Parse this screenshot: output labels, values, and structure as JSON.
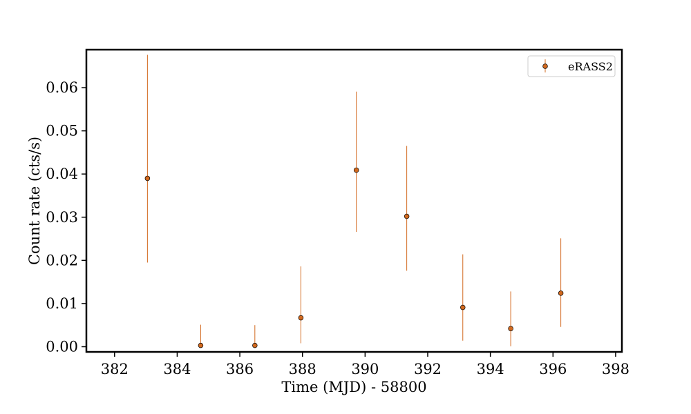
{
  "chart_data": {
    "type": "scatter",
    "xlabel": "Time (MJD) - 58800",
    "ylabel": "Count rate (cts/s)",
    "xlim": [
      381.1,
      398.2
    ],
    "ylim": [
      -0.0012,
      0.0688
    ],
    "xticks": [
      382,
      384,
      386,
      388,
      390,
      392,
      394,
      396,
      398
    ],
    "xtick_labels": [
      "382",
      "384",
      "386",
      "388",
      "390",
      "392",
      "394",
      "396",
      "398"
    ],
    "yticks": [
      0.0,
      0.01,
      0.02,
      0.03,
      0.04,
      0.05,
      0.06
    ],
    "ytick_labels": [
      "0.00",
      "0.01",
      "0.02",
      "0.03",
      "0.04",
      "0.05",
      "0.06"
    ],
    "grid": false,
    "legend_position": "top-right",
    "series": [
      {
        "name": "eRASS2",
        "color": "#d2691e",
        "points": [
          {
            "x": 383.05,
            "y": 0.039,
            "ylo": 0.0195,
            "yhi": 0.0676
          },
          {
            "x": 384.75,
            "y": 0.0003,
            "ylo": 0.0,
            "yhi": 0.0051
          },
          {
            "x": 386.48,
            "y": 0.0003,
            "ylo": 0.0,
            "yhi": 0.005
          },
          {
            "x": 387.95,
            "y": 0.0067,
            "ylo": 0.0008,
            "yhi": 0.0186
          },
          {
            "x": 389.72,
            "y": 0.0409,
            "ylo": 0.0266,
            "yhi": 0.0591
          },
          {
            "x": 391.33,
            "y": 0.0302,
            "ylo": 0.0176,
            "yhi": 0.0465
          },
          {
            "x": 393.12,
            "y": 0.0091,
            "ylo": 0.0014,
            "yhi": 0.0214
          },
          {
            "x": 394.65,
            "y": 0.0042,
            "ylo": 0.0001,
            "yhi": 0.0128
          },
          {
            "x": 396.25,
            "y": 0.0124,
            "ylo": 0.0046,
            "yhi": 0.0251
          }
        ]
      }
    ]
  }
}
